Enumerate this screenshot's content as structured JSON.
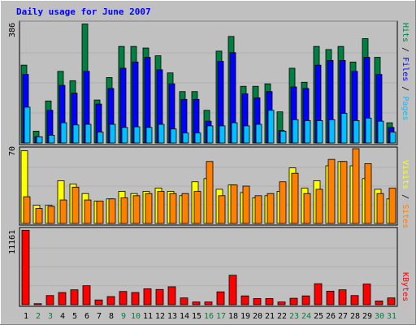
{
  "title": "Daily usage for June 2007",
  "colors": {
    "background": "#c0c0c0",
    "grid": "#aaaaaa",
    "title": "#0000ff",
    "hits": "#008040",
    "files": "#0000ff",
    "pages": "#00c0ff",
    "visits": "#ffff00",
    "sites": "#ff8000",
    "kbytes": "#ff0000",
    "weekend_day": "#008040",
    "weekday": "#000000"
  },
  "chart_data": [
    {
      "type": "bar",
      "name": "hits-files-pages",
      "ymax_label": "386",
      "ylim": [
        0,
        386
      ],
      "categories": [
        "1",
        "2",
        "3",
        "4",
        "5",
        "6",
        "7",
        "8",
        "9",
        "10",
        "11",
        "12",
        "13",
        "14",
        "15",
        "16",
        "17",
        "18",
        "19",
        "20",
        "21",
        "22",
        "23",
        "24",
        "25",
        "26",
        "27",
        "28",
        "29",
        "30",
        "31"
      ],
      "series": [
        {
          "name": "Hits",
          "values": [
            250,
            38,
            135,
            230,
            200,
            382,
            138,
            210,
            310,
            310,
            305,
            280,
            225,
            165,
            165,
            105,
            295,
            342,
            182,
            182,
            190,
            100,
            240,
            195,
            310,
            300,
            310,
            260,
            335,
            275,
            65
          ]
        },
        {
          "name": "Files",
          "values": [
            220,
            20,
            105,
            185,
            160,
            230,
            125,
            175,
            240,
            260,
            275,
            235,
            190,
            140,
            140,
            70,
            262,
            290,
            158,
            145,
            165,
            40,
            180,
            175,
            250,
            265,
            265,
            230,
            275,
            220,
            50
          ]
        },
        {
          "name": "Pages",
          "values": [
            115,
            20,
            25,
            65,
            58,
            60,
            35,
            60,
            50,
            52,
            50,
            60,
            45,
            32,
            32,
            55,
            55,
            65,
            55,
            60,
            105,
            38,
            75,
            72,
            72,
            75,
            95,
            72,
            80,
            70,
            35
          ]
        }
      ],
      "legend": [
        "Pages",
        "Files",
        "Hits"
      ]
    },
    {
      "type": "bar",
      "name": "visits-sites",
      "ymax_label": "70",
      "ylim": [
        0,
        70
      ],
      "categories": [
        "1",
        "2",
        "3",
        "4",
        "5",
        "6",
        "7",
        "8",
        "9",
        "10",
        "11",
        "12",
        "13",
        "14",
        "15",
        "16",
        "17",
        "18",
        "19",
        "20",
        "21",
        "22",
        "23",
        "24",
        "25",
        "26",
        "27",
        "28",
        "29",
        "30",
        "31"
      ],
      "series": [
        {
          "name": "Visits",
          "values": [
            68,
            17,
            17,
            40,
            37,
            28,
            21,
            23,
            30,
            28,
            30,
            33,
            30,
            26,
            39,
            42,
            32,
            36,
            29,
            24,
            26,
            30,
            52,
            33,
            40,
            54,
            58,
            54,
            42,
            32,
            23
          ]
        },
        {
          "name": "Sites",
          "values": [
            25,
            14,
            16,
            22,
            34,
            22,
            21,
            23,
            24,
            26,
            28,
            30,
            28,
            28,
            30,
            58,
            26,
            36,
            35,
            26,
            28,
            39,
            47,
            28,
            32,
            60,
            58,
            70,
            56,
            28,
            33
          ]
        }
      ],
      "legend": [
        "Sites",
        "Visits"
      ]
    },
    {
      "type": "bar",
      "name": "kbytes",
      "ymax_label": "11161",
      "ylim": [
        0,
        11161
      ],
      "categories": [
        "1",
        "2",
        "3",
        "4",
        "5",
        "6",
        "7",
        "8",
        "9",
        "10",
        "11",
        "12",
        "13",
        "14",
        "15",
        "16",
        "17",
        "18",
        "19",
        "20",
        "21",
        "22",
        "23",
        "24",
        "25",
        "26",
        "27",
        "28",
        "29",
        "30",
        "31"
      ],
      "series": [
        {
          "name": "KBytes",
          "values": [
            11000,
            150,
            1350,
            1800,
            2200,
            2800,
            700,
            1200,
            1950,
            1800,
            2350,
            2250,
            2650,
            1000,
            400,
            400,
            1900,
            4350,
            1300,
            900,
            900,
            400,
            950,
            1300,
            3100,
            2000,
            2200,
            1350,
            3050,
            550,
            1000
          ]
        }
      ],
      "legend": [
        "KBytes"
      ]
    }
  ],
  "x_axis": {
    "labels": [
      "1",
      "2",
      "3",
      "4",
      "5",
      "6",
      "7",
      "8",
      "9",
      "10",
      "11",
      "12",
      "13",
      "14",
      "15",
      "16",
      "17",
      "18",
      "19",
      "20",
      "21",
      "22",
      "23",
      "24",
      "25",
      "26",
      "27",
      "28",
      "29",
      "30",
      "31"
    ],
    "weekend": [
      false,
      true,
      true,
      false,
      false,
      false,
      false,
      false,
      true,
      true,
      false,
      false,
      false,
      false,
      false,
      true,
      true,
      false,
      false,
      false,
      false,
      false,
      true,
      true,
      false,
      false,
      false,
      false,
      false,
      true,
      true
    ]
  }
}
